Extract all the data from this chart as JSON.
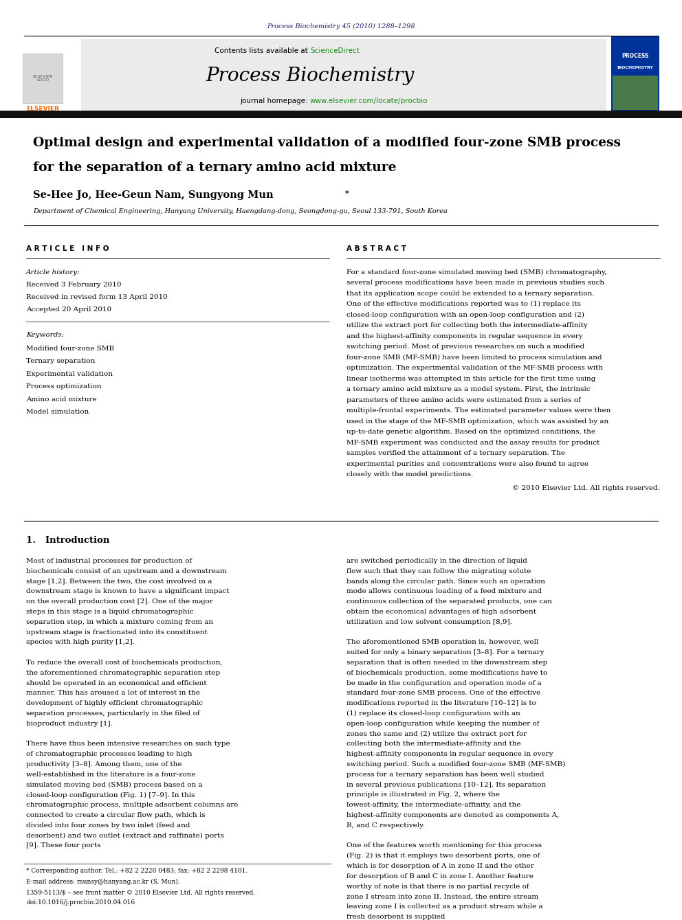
{
  "page_width": 9.92,
  "page_height": 13.23,
  "bg_color": "#ffffff",
  "journal_ref": "Process Biochemistry 45 (2010) 1288–1298",
  "journal_ref_color": "#1a1a6e",
  "contents_line": "Contents lists available at ScienceDirect",
  "sciencedirect_color": "#1a8c1a",
  "journal_name": "Process Biochemistry",
  "journal_homepage": "journal homepage: www.elsevier.com/locate/procbio",
  "title_line1": "Optimal design and experimental validation of a modified four-zone SMB process",
  "title_line2": "for the separation of a ternary amino acid mixture",
  "affiliation": "Department of Chemical Engineering, Hanyang University, Haengdang-dong, Seongdong-gu, Seoul 133-791, South Korea",
  "article_info_header": "A R T I C L E   I N F O",
  "abstract_header": "A B S T R A C T",
  "article_history_label": "Article history:",
  "received1": "Received 3 February 2010",
  "received2": "Received in revised form 13 April 2010",
  "accepted": "Accepted 20 April 2010",
  "keywords_label": "Keywords:",
  "keywords": [
    "Modified four-zone SMB",
    "Ternary separation",
    "Experimental validation",
    "Process optimization",
    "Amino acid mixture",
    "Model simulation"
  ],
  "abstract_text": "For a standard four-zone simulated moving bed (SMB) chromatography, several process modifications have been made in previous studies such that its application scope could be extended to a ternary separation. One of the effective modifications reported was to (1) replace its closed-loop configuration with an open-loop configuration and (2) utilize the extract port for collecting both the intermediate-affinity and the highest-affinity components in regular sequence in every switching period. Most of previous researches on such a modified four-zone SMB (MF-SMB) have been limited to process simulation and optimization. The experimental validation of the MF-SMB process with linear isotherms was attempted in this article for the first time using a ternary amino acid mixture as a model system. First, the intrinsic parameters of three amino acids were estimated from a series of multiple-frontal experiments. The estimated parameter values were then used in the stage of the MF-SMB optimization, which was assisted by an up-to-date genetic algorithm. Based on the optimized conditions, the MF-SMB experiment was conducted and the assay results for product samples verified the attainment of a ternary separation. The experimental purities and concentrations were also found to agree closely with the model predictions.",
  "copyright": "© 2010 Elsevier Ltd. All rights reserved.",
  "section1_title": "1.   Introduction",
  "intro_col1": "Most of industrial processes for production of biochemicals consist of an upstream and a downstream stage [1,2]. Between the two, the cost involved in a downstream stage is known to have a significant impact on the overall production cost [2]. One of the major steps in this stage is a liquid chromatographic separation step, in which a mixture coming from an upstream stage is fractionated into its constituent species with high purity [1,2].\n\nTo reduce the overall cost of biochemicals production, the aforementioned chromatographic separation step should be operated in an economical and efficient manner. This has aroused a lot of interest in the development of highly efficient chromatographic separation processes, particularly in the filed of bioproduct industry [1].\n\nThere have thus been intensive researches on such type of chromatographic processes leading to high productivity [3–8]. Among them, one of the well-established in the literature is a four-zone simulated moving bed (SMB) process based on a closed-loop configuration (Fig. 1) [7–9]. In this chromatographic process, multiple adsorbent columns are connected to create a circular flow path, which is divided into four zones by two inlet (feed and desorbent) and two outlet (extract and raffinate) ports [9]. These four ports",
  "intro_col2": "are switched periodically in the direction of liquid flow such that they can follow the migrating solute bands along the circular path. Since such an operation mode allows continuous loading of a feed mixture and continuous collection of the separated products, one can obtain the economical advantages of high adsorbent utilization and low solvent consumption [8,9].\n\nThe aforementioned SMB operation is, however, well suited for only a binary separation [3–8]. For a ternary separation that is often needed in the downstream step of biochemicals production, some modifications have to be made in the configuration and operation mode of a standard four-zone SMB process. One of the effective modifications reported in the literature [10–12] is to (1) replace its closed-loop configuration with an open-loop configuration while keeping the number of zones the same and (2) utilize the extract port for collecting both the intermediate-affinity and the highest-affinity components in regular sequence in every switching period. Such a modified four-zone SMB (MF-SMB) process for a ternary separation has been well studied in several previous publications [10–12]. Its separation principle is illustrated in Fig. 2, where the lowest-affinity, the intermediate-affinity, and the highest-affinity components are denoted as components A, B, and C respectively.\n\nOne of the features worth mentioning for this process (Fig. 2) is that it employs two desorbent ports, one of which is for desorption of A in zone II and the other for desorption of B and C in zone I. Another feature worthy of note is that there is no partial recycle of zone I stream into zone II. Instead, the entire stream leaving zone I is collected as a product stream while a fresh desorbent is supplied",
  "footnote1": "* Corresponding author. Tel.: +82 2 2220 0483; fax: +82 2 2298 4101.",
  "footnote2": "E-mail address: munsy@hanyang.ac.kr (S. Mun).",
  "footer1": "1359-5113/$ – see front matter © 2010 Elsevier Ltd. All rights reserved.",
  "footer2": "doi:10.1016/j.procbio.2010.04.016"
}
